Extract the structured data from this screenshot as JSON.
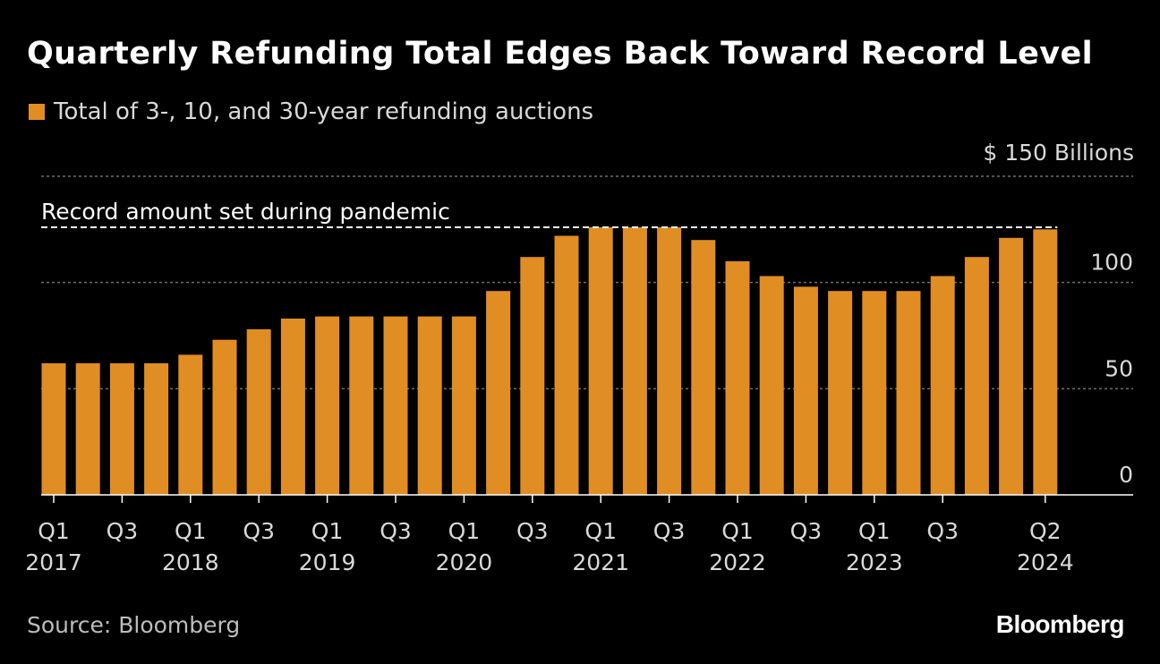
{
  "header": {
    "title": "Quarterly Refunding Total Edges Back Toward Record Level"
  },
  "footer": {
    "source": "Source: Bloomberg",
    "brand": "Bloomberg"
  },
  "colors": {
    "bar": "#e08d24",
    "background": "#000000",
    "grid": "#6e6e6e",
    "text": "#d9d9d9"
  },
  "chart_data": {
    "type": "bar",
    "legend": "Total of 3-, 10, and 30-year refunding auctions",
    "y_unit_label": "$ 150 Billions",
    "ylim": [
      0,
      150
    ],
    "yticks": [
      {
        "value": 0,
        "label": "0"
      },
      {
        "value": 50,
        "label": "50"
      },
      {
        "value": 100,
        "label": "100"
      }
    ],
    "grid": true,
    "categories": [
      "2017 Q1",
      "2017 Q2",
      "2017 Q3",
      "2017 Q4",
      "2018 Q1",
      "2018 Q2",
      "2018 Q3",
      "2018 Q4",
      "2019 Q1",
      "2019 Q2",
      "2019 Q3",
      "2019 Q4",
      "2020 Q1",
      "2020 Q2",
      "2020 Q3",
      "2020 Q4",
      "2021 Q1",
      "2021 Q2",
      "2021 Q3",
      "2021 Q4",
      "2022 Q1",
      "2022 Q2",
      "2022 Q3",
      "2022 Q4",
      "2023 Q1",
      "2023 Q2",
      "2023 Q3",
      "2023 Q4",
      "2024 Q1",
      "2024 Q2"
    ],
    "values": [
      62,
      62,
      62,
      62,
      66,
      73,
      78,
      83,
      84,
      84,
      84,
      84,
      84,
      96,
      112,
      122,
      126,
      126,
      126,
      120,
      110,
      103,
      98,
      96,
      96,
      96,
      103,
      112,
      121,
      125
    ],
    "xtick_labels": [
      {
        "index": 0,
        "quarter": "Q1",
        "year": "2017"
      },
      {
        "index": 2,
        "quarter": "Q3",
        "year": ""
      },
      {
        "index": 4,
        "quarter": "Q1",
        "year": "2018"
      },
      {
        "index": 6,
        "quarter": "Q3",
        "year": ""
      },
      {
        "index": 8,
        "quarter": "Q1",
        "year": "2019"
      },
      {
        "index": 10,
        "quarter": "Q3",
        "year": ""
      },
      {
        "index": 12,
        "quarter": "Q1",
        "year": "2020"
      },
      {
        "index": 14,
        "quarter": "Q3",
        "year": ""
      },
      {
        "index": 16,
        "quarter": "Q1",
        "year": "2021"
      },
      {
        "index": 18,
        "quarter": "Q3",
        "year": ""
      },
      {
        "index": 20,
        "quarter": "Q1",
        "year": "2022"
      },
      {
        "index": 22,
        "quarter": "Q3",
        "year": ""
      },
      {
        "index": 24,
        "quarter": "Q1",
        "year": "2023"
      },
      {
        "index": 26,
        "quarter": "Q3",
        "year": ""
      },
      {
        "index": 29,
        "quarter": "Q2",
        "year": "2024"
      }
    ],
    "annotation": {
      "text": "Record amount set during pandemic",
      "value": 126
    },
    "xlabel": "",
    "ylabel": ""
  }
}
